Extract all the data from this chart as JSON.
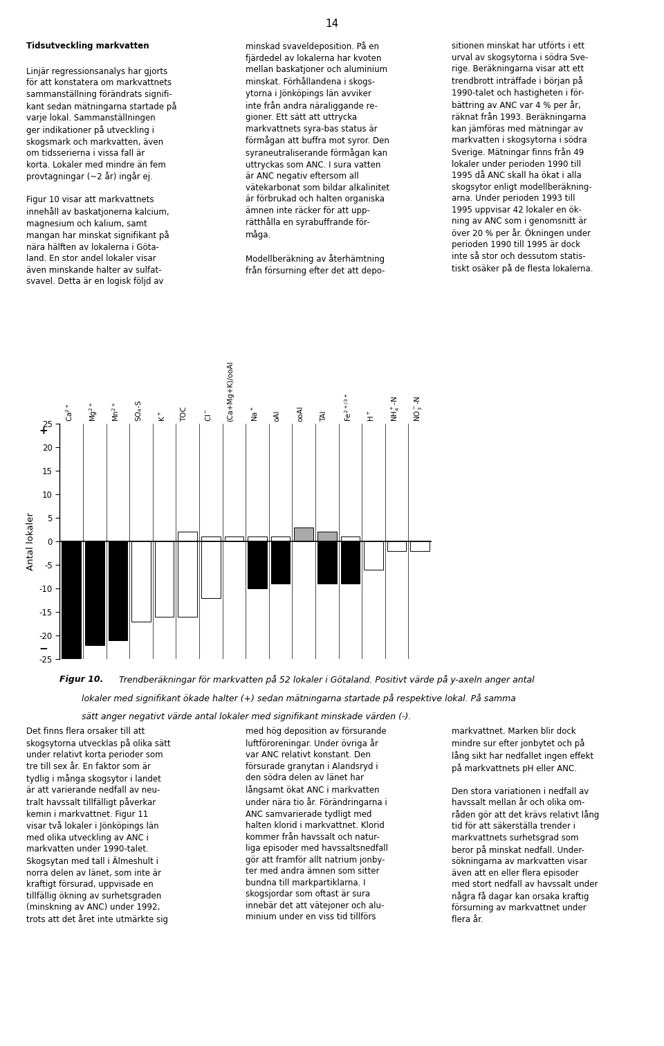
{
  "page_number": "14",
  "figsize": [
    9.6,
    15.11
  ],
  "dpi": 100,
  "ylabel": "Antal lokaler",
  "ylim": [
    -25,
    25
  ],
  "yticks": [
    -25,
    -20,
    -15,
    -10,
    -5,
    0,
    5,
    10,
    15,
    20,
    25
  ],
  "categories": [
    "Ca$^{2+}$",
    "Mg$^{2+}$",
    "Mn$^{2+}$",
    "SO$_4$-S",
    "K$^+$",
    "TOC",
    "Cl$^-$",
    "(Ca+Mg+K)/ooAl",
    "Na$^+$",
    "oAl",
    "ooAl",
    "TAl",
    "Fe$^{2+/3+}$",
    "H$^+$",
    "NH$_4^+$-N",
    "NO$_3^-$-N"
  ],
  "neg_black": [
    -25,
    -22,
    -21,
    0,
    0,
    0,
    0,
    0,
    -10,
    -9,
    0,
    -9,
    -9,
    0,
    0,
    0
  ],
  "neg_white": [
    0,
    0,
    0,
    -17,
    -16,
    -16,
    -12,
    0,
    0,
    0,
    0,
    0,
    0,
    -6,
    -2,
    -2
  ],
  "pos_gray": [
    0,
    0,
    0,
    0,
    0,
    0,
    0,
    0,
    0,
    0,
    3,
    2,
    0,
    0,
    0,
    0
  ],
  "pos_white": [
    0,
    0,
    0,
    0,
    0,
    2,
    1,
    1,
    1,
    1,
    0,
    0,
    1,
    0,
    0,
    0
  ],
  "gray_color": "#aaaaaa",
  "caption_bold": "Figur 10.",
  "caption_italic": " Trendberäkningar för markvatten på 52 lokaler i Götaland. Positivt värde på y-axeln anger antal\n        lokaler med signifikant ökade halter (+) sedan mätningarna startade på respektive lokal. På samma\n        sätt anger negativt värde antal lokaler med signifikant minskade värden (-).",
  "top_left_col": "Tidsutveckling markvatten\nLinjär regressionsanalys har gjorts\nför att konstatera om markvattnets\nsammanställning förändrats signifi-\nkant sedan mätningarna startade på\nvarje lokal. Sammanställningen\nger indikationer på utveckling i\nskogsmark och markvatten, även\nom tidsserierna i vissa fall är\nkorta. Lokaler med mindre än fem\nprovtagningar (~2 år) ingår ej.\n\nFigur 10 visar att markvattnets\ninnehåll av baskatjonerna kalcium,\nmagnesium och kalium, samt\nmangan har minskat signifikant på\nnära hälften av lokalerna i Göta-\nland. En stor andel lokaler visar\näven minskande halter av sulfat-\nsvavel. Detta är en logisk följd av",
  "top_mid_col": "minskad svaveldeposition. På en\nfjärdedel av lokalerna har kvoten\nmellan baskatjoner och aluminium\nminskat. Förhållandena i skogs-\nytorna i Jönköpings län avviker\ninte från andra näraliggande re-\ngioner. Ett sätt att uttrycka\nmarkvattnets syra-bas status är\nförmågan att buffra mot syror. Den\nsyraneutraliserande förmågan kan\nuttryckas som ANC. I sura vatten\när ANC negativ eftersom all\nvätekarbonat som bildar alkalinitet\när förbrukad och halten organiska\nämnen inte räcker för att upp-\nrätthålla en syrabuffrande för-\nmåga.\n\nModellberäkning av återhämtning\nfrån försurning efter det att depo-",
  "top_right_col": "sitionen minskat har utförts i ett\nurval av skogsytorna i södra Sve-\nrige. Beräkningarna visar att ett\ntrendbrott inträffade i början på\n1990-talet och hastigheten i för-\nbättring av ANC var 4 % per år,\nräknat från 1993. Beräkningarna\nkan jämföras med mätningar av\nmarkvatten i skogsytorna i södra\nSverige. Mätningar finns från 49\nlokaler under perioden 1990 till\n1995 då ANC skall ha ökat i alla\nskogsytor enligt modellberäkning-\narna. Under perioden 1993 till\n1995 uppvisar 42 lokaler en ök-\nning av ANC som i genomsnitt är\növer 20 % per år. Ökningen under\nperioden 1990 till 1995 är dock\ninte så stor och dessutom statis-\ntiskt osäker på de flesta lokalerna.",
  "bot_left_col": "Det finns flera orsaker till att\nskogsytorna utvecklas på olika sätt\nunder relativt korta perioder som\ntre till sex år. En faktor som är\ntydlig i många skogsytor i landet\när att varierande nedfall av neu-\ntralt havssalt tillfälligt påverkar\nkemin i markvattnet. Figur 11\nvisar två lokaler i Jönköpings län\nmed olika utveckling av ANC i\nmarkvatten under 1990-talet.\nSkogsytan med tall i Älmeshult i\nnorra delen av länet, som inte är\nkraftigt försurad, uppvisade en\ntillfällig ökning av surhetsgraden\n(minskning av ANC) under 1992,\ntrots att det året inte utmärkte sig",
  "bot_mid_col": "med hög deposition av försurande\nluftföroreningar. Under övriga år\nvar ANC relativt konstant. Den\nförsurade granytan i Alandsryd i\nden södra delen av länet har\nlångsamt ökat ANC i markvatten\nunder nära tio år. Förändringarna i\nANC samvarierade tydligt med\nhalten klorid i markvattnet. Klorid\nkommer från havssalt och natur-\nliga episoder med havssaltsnedfall\ngör att framför allt natrium jonby-\nter med andra ämnen som sitter\nbundna till markpartiklarna. I\nskogsjordar som oftast är sura\ninnebär det att vätejoner och alu-\nminium under en viss tid tillförs",
  "bot_right_col": "markvattnet. Marken blir dock\nmindre sur efter jonbytet och på\nlång sikt har nedfallet ingen effekt\npå markvattnets pH eller ANC.\n\nDen stora variationen i nedfall av\nhavssalt mellan år och olika om-\nråden gör att det krävs relativt lång\ntid för att säkerställa trender i\nmarkvattnets surhetsgrad som\nberor på minskat nedfall. Under-\nsökningarna av markvatten visar\näven att en eller flera episoder\nmed stort nedfall av havssalt under\nnågra få dagar kan orsaka kraftig\nförsurning av markvattnet under\nflera år."
}
